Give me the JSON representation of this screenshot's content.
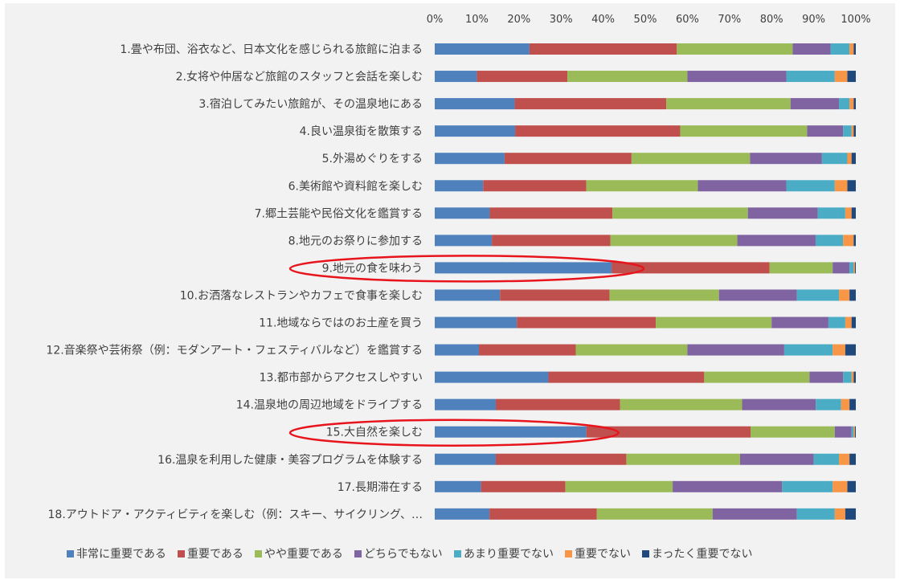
{
  "chart_data": {
    "type": "bar",
    "orientation": "horizontal",
    "stacked": "percent",
    "xlim": [
      0,
      100
    ],
    "x_ticks": [
      "0%",
      "10%",
      "20%",
      "30%",
      "40%",
      "50%",
      "60%",
      "70%",
      "80%",
      "90%",
      "100%"
    ],
    "grid": false,
    "legend_position": "bottom",
    "categories": [
      "1.畳や布団、浴衣など、日本文化を感じられる旅館に泊まる",
      "2.女将や仲居など旅館のスタッフと会話を楽しむ",
      "3.宿泊してみたい旅館が、その温泉地にある",
      "4.良い温泉街を散策する",
      "5.外湯めぐりをする",
      "6.美術館や資料館を楽しむ",
      "7.郷土芸能や民俗文化を鑑賞する",
      "8.地元のお祭りに参加する",
      "9.地元の食を味わう",
      "10.お洒落なレストランやカフェで食事を楽しむ",
      "11.地域ならではのお土産を買う",
      "12.音楽祭や芸術祭（例：モダンアート・フェスティバルなど）を鑑賞する",
      "13.都市部からアクセスしやすい",
      "14.温泉地の周辺地域をドライブする",
      "15.大自然を楽しむ",
      "16.温泉を利用した健康・美容プログラムを体験する",
      "17.長期滞在する",
      "18.アウトドア・アクティビティを楽しむ（例：スキー、サイクリング、…"
    ],
    "series": [
      {
        "name": "非常に重要である",
        "color": "#4f81bd",
        "values": [
          22.5,
          10,
          19,
          19,
          16.5,
          11.5,
          13,
          13.5,
          42,
          15.5,
          19.5,
          10.5,
          27,
          14.5,
          36,
          14.5,
          11,
          13
        ]
      },
      {
        "name": "重要である",
        "color": "#c0504d",
        "values": [
          35,
          21.5,
          36,
          39,
          30,
          24.5,
          29,
          28,
          37.5,
          26,
          33,
          23,
          37,
          29.5,
          39,
          31,
          20,
          25.5
        ]
      },
      {
        "name": "やや重要である",
        "color": "#9bbb59",
        "values": [
          27.5,
          28.5,
          29.5,
          30,
          28,
          26.5,
          32,
          30,
          15,
          26,
          27.5,
          26.5,
          25,
          29,
          20,
          27,
          25.5,
          27.5
        ]
      },
      {
        "name": "どちらでもない",
        "color": "#8064a2",
        "values": [
          9,
          23.5,
          11.5,
          8.5,
          17,
          21,
          16.5,
          18.5,
          4,
          18.5,
          13.5,
          23,
          8,
          17.5,
          4,
          17.5,
          26,
          20
        ]
      },
      {
        "name": "あまり重要でない",
        "color": "#4bacc6",
        "values": [
          4.5,
          11.5,
          2.5,
          2,
          6,
          11.5,
          6.5,
          6.5,
          1,
          10,
          4,
          11.5,
          2,
          6,
          0.5,
          6,
          12,
          9
        ]
      },
      {
        "name": "重要でない",
        "color": "#f79646",
        "values": [
          1,
          3,
          1,
          0.5,
          1,
          3,
          1.5,
          2.5,
          0.3,
          2.5,
          1.5,
          3,
          0.5,
          2,
          0.3,
          2.5,
          3.5,
          2.5
        ]
      },
      {
        "name": "まったく重要でない",
        "color": "#1f497d",
        "values": [
          0.5,
          2,
          0.5,
          0.5,
          1,
          2,
          1,
          0.5,
          0.2,
          1.5,
          1,
          2.5,
          0.5,
          1.5,
          0.2,
          1.5,
          2,
          2.5
        ]
      }
    ],
    "highlighted_categories": [
      "9.地元の食を味わう",
      "15.大自然を楽しむ"
    ],
    "highlight_color": "#e8141c"
  }
}
